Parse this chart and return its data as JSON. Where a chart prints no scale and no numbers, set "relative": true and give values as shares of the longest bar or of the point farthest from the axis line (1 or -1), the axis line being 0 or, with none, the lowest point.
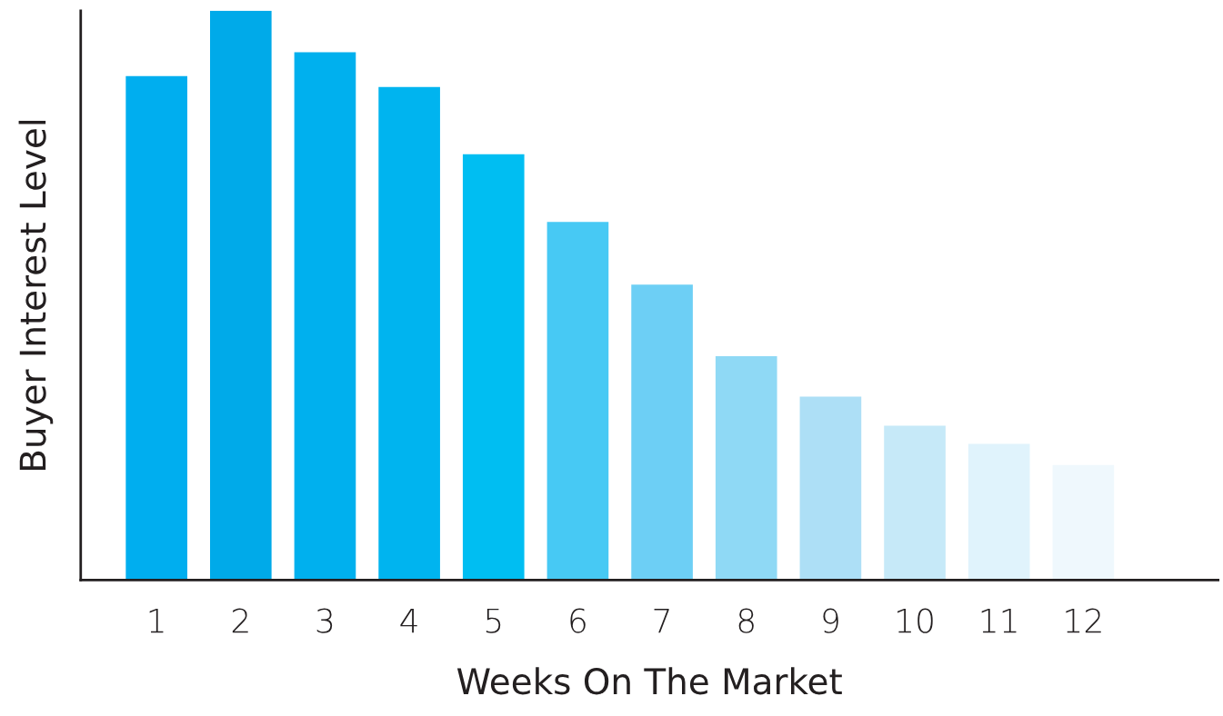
{
  "chart_data": {
    "type": "bar",
    "relative": true,
    "xlabel": "Weeks On The Market",
    "ylabel": "Buyer Interest Level",
    "categories": [
      "1",
      "2",
      "3",
      "4",
      "5",
      "6",
      "7",
      "8",
      "9",
      "10",
      "11",
      "12"
    ],
    "values": [
      0.885,
      1,
      0.927,
      0.866,
      0.748,
      0.629,
      0.519,
      0.393,
      0.322,
      0.271,
      0.239,
      0.202
    ],
    "colors": [
      "#00aeef",
      "#00aae9",
      "#00b0ee",
      "#00b4ef",
      "#00bef2",
      "#47c9f4",
      "#6dcff5",
      "#8fd9f5",
      "#addff6",
      "#c6e9f8",
      "#e0f3fc",
      "#eff8fd"
    ],
    "grid": false,
    "legend": false
  }
}
